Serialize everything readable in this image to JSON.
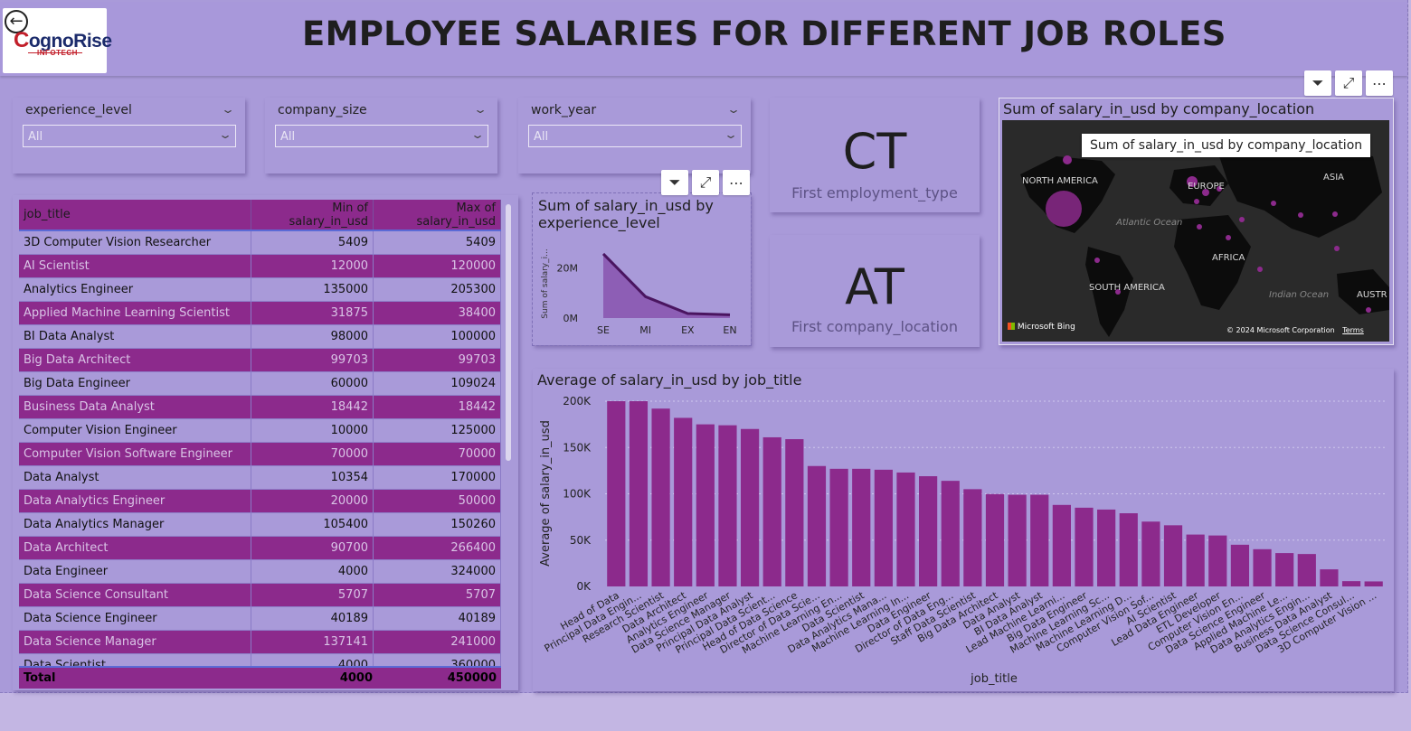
{
  "header": {
    "title": "EMPLOYEE SALARIES FOR DIFFERENT JOB ROLES",
    "logo_text": "CognoRise",
    "logo_sub": "INFOTECH"
  },
  "slicers": [
    {
      "label": "experience_level",
      "value": "All"
    },
    {
      "label": "company_size",
      "value": "All"
    },
    {
      "label": "work_year",
      "value": "All"
    }
  ],
  "cards": [
    {
      "value": "CT",
      "caption": "First employment_type"
    },
    {
      "value": "AT",
      "caption": "First company_location"
    }
  ],
  "map": {
    "title": "Sum of salary_in_usd by company_location",
    "tooltip": "Sum of salary_in_usd by company_location",
    "labels": [
      "NORTH AMERICA",
      "EUROPE",
      "ASIA",
      "Atlantic Ocean",
      "AFRICA",
      "SOUTH AMERICA",
      "Indian Ocean",
      "AUSTR"
    ],
    "brand": "Microsoft Bing",
    "copyright": "© 2024 Microsoft Corporation",
    "terms": "Terms"
  },
  "colors": {
    "accent": "#8c2a8c",
    "line": "#4a1560",
    "area": "#8a58b0",
    "bg": "#a99ad9"
  },
  "table": {
    "headers": [
      "job_title",
      "Min of salary_in_usd",
      "Max of salary_in_usd"
    ],
    "rows": [
      [
        "3D Computer Vision Researcher",
        "5409",
        "5409"
      ],
      [
        "AI Scientist",
        "12000",
        "120000"
      ],
      [
        "Analytics Engineer",
        "135000",
        "205300"
      ],
      [
        "Applied Machine Learning Scientist",
        "31875",
        "38400"
      ],
      [
        "BI Data Analyst",
        "98000",
        "100000"
      ],
      [
        "Big Data Architect",
        "99703",
        "99703"
      ],
      [
        "Big Data Engineer",
        "60000",
        "109024"
      ],
      [
        "Business Data Analyst",
        "18442",
        "18442"
      ],
      [
        "Computer Vision Engineer",
        "10000",
        "125000"
      ],
      [
        "Computer Vision Software Engineer",
        "70000",
        "70000"
      ],
      [
        "Data Analyst",
        "10354",
        "170000"
      ],
      [
        "Data Analytics Engineer",
        "20000",
        "50000"
      ],
      [
        "Data Analytics Manager",
        "105400",
        "150260"
      ],
      [
        "Data Architect",
        "90700",
        "266400"
      ],
      [
        "Data Engineer",
        "4000",
        "324000"
      ],
      [
        "Data Science Consultant",
        "5707",
        "5707"
      ],
      [
        "Data Science Engineer",
        "40189",
        "40189"
      ],
      [
        "Data Science Manager",
        "137141",
        "241000"
      ],
      [
        "Data Scientist",
        "4000",
        "360000"
      ]
    ],
    "total": [
      "Total",
      "4000",
      "450000"
    ]
  },
  "chart_data": [
    {
      "type": "area",
      "title": "Sum of salary_in_usd by experience_level",
      "xlabel": "",
      "ylabel": "Sum of salary_i...",
      "categories": [
        "SE",
        "MI",
        "EX",
        "EN"
      ],
      "values": [
        25500000,
        8500000,
        1800000,
        1300000
      ],
      "yticks": [
        "20M",
        "0M"
      ],
      "ylim": [
        0,
        28000000
      ]
    },
    {
      "type": "bar",
      "title": "Average of salary_in_usd by job_title",
      "xlabel": "job_title",
      "ylabel": "Average of salary_in_usd",
      "ylim": [
        0,
        200000
      ],
      "yticks": [
        "200K",
        "150K",
        "100K",
        "50K",
        "0K"
      ],
      "grid": true,
      "categories": [
        "Head of Data",
        "Principal Data Engin...",
        "Research Scientist",
        "Data Architect",
        "Analytics Engineer",
        "Data Science Manager",
        "Principal Data Analyst",
        "Principal Data Scient...",
        "Head of Data Science",
        "Director of Data Scie...",
        "Machine Learning En...",
        "Data Scientist",
        "Data Analytics Mana...",
        "Machine Learning In...",
        "Data Engineer",
        "Director of Data Eng...",
        "Staff Data Scientist",
        "Big Data Architect",
        "Data Analyst",
        "BI Data Analyst",
        "Lead Machine Learni...",
        "Big Data Engineer",
        "Machine Learning Sc...",
        "Machine Learning D...",
        "Computer Vision Sof...",
        "AI Scientist",
        "Lead Data Engineer",
        "ETL Developer",
        "Computer Vision En...",
        "Data Science Engineer",
        "Applied Machine Le...",
        "Data Analytics Engin...",
        "Business Data Analyst",
        "Data Science Consul...",
        "3D Computer Vision ..."
      ],
      "values": [
        200000,
        200000,
        192000,
        182000,
        175000,
        174000,
        170000,
        161000,
        159000,
        130000,
        127000,
        127000,
        126000,
        123000,
        119000,
        114000,
        105000,
        99703,
        99000,
        99000,
        88000,
        85000,
        83000,
        79000,
        70000,
        66000,
        56000,
        55000,
        45000,
        40189,
        36000,
        35000,
        18442,
        5707,
        5409
      ]
    }
  ]
}
